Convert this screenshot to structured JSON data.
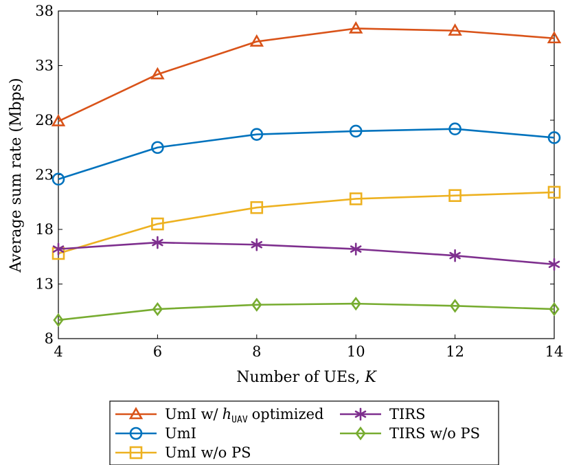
{
  "chart_data": {
    "type": "line",
    "title": "",
    "xlabel": "Number of UEs,",
    "xlabel_var": "K",
    "ylabel": "Average sum rate (Mbps)",
    "x": [
      4,
      6,
      8,
      10,
      12,
      14
    ],
    "x_ticks": [
      "4",
      "6",
      "8",
      "10",
      "12",
      "14"
    ],
    "y_ticks": [
      "8",
      "13",
      "18",
      "23",
      "28",
      "33",
      "38"
    ],
    "xlim": [
      4,
      14
    ],
    "ylim": [
      8,
      38
    ],
    "grid": false,
    "legend_placement": "below",
    "series": [
      {
        "name": "UmI w/",
        "name_math": "h",
        "name_sub": "UAV",
        "name_suffix": "optimized",
        "color": "#D95319",
        "marker": "triangle",
        "values": [
          27.9,
          32.2,
          35.2,
          36.4,
          36.2,
          35.5
        ]
      },
      {
        "name": "UmI",
        "color": "#0072BD",
        "marker": "circle",
        "values": [
          22.6,
          25.5,
          26.7,
          27.0,
          27.2,
          26.4
        ]
      },
      {
        "name": "UmI w/o PS",
        "color": "#EDB120",
        "marker": "square",
        "values": [
          15.8,
          18.5,
          20.0,
          20.8,
          21.1,
          21.4
        ]
      },
      {
        "name": "TIRS",
        "color": "#7E2F8E",
        "marker": "star",
        "values": [
          16.2,
          16.8,
          16.6,
          16.2,
          15.6,
          14.8
        ]
      },
      {
        "name": "TIRS w/o PS",
        "color": "#77AC30",
        "marker": "diamond",
        "values": [
          9.7,
          10.7,
          11.1,
          11.2,
          11.0,
          10.7
        ]
      }
    ]
  }
}
